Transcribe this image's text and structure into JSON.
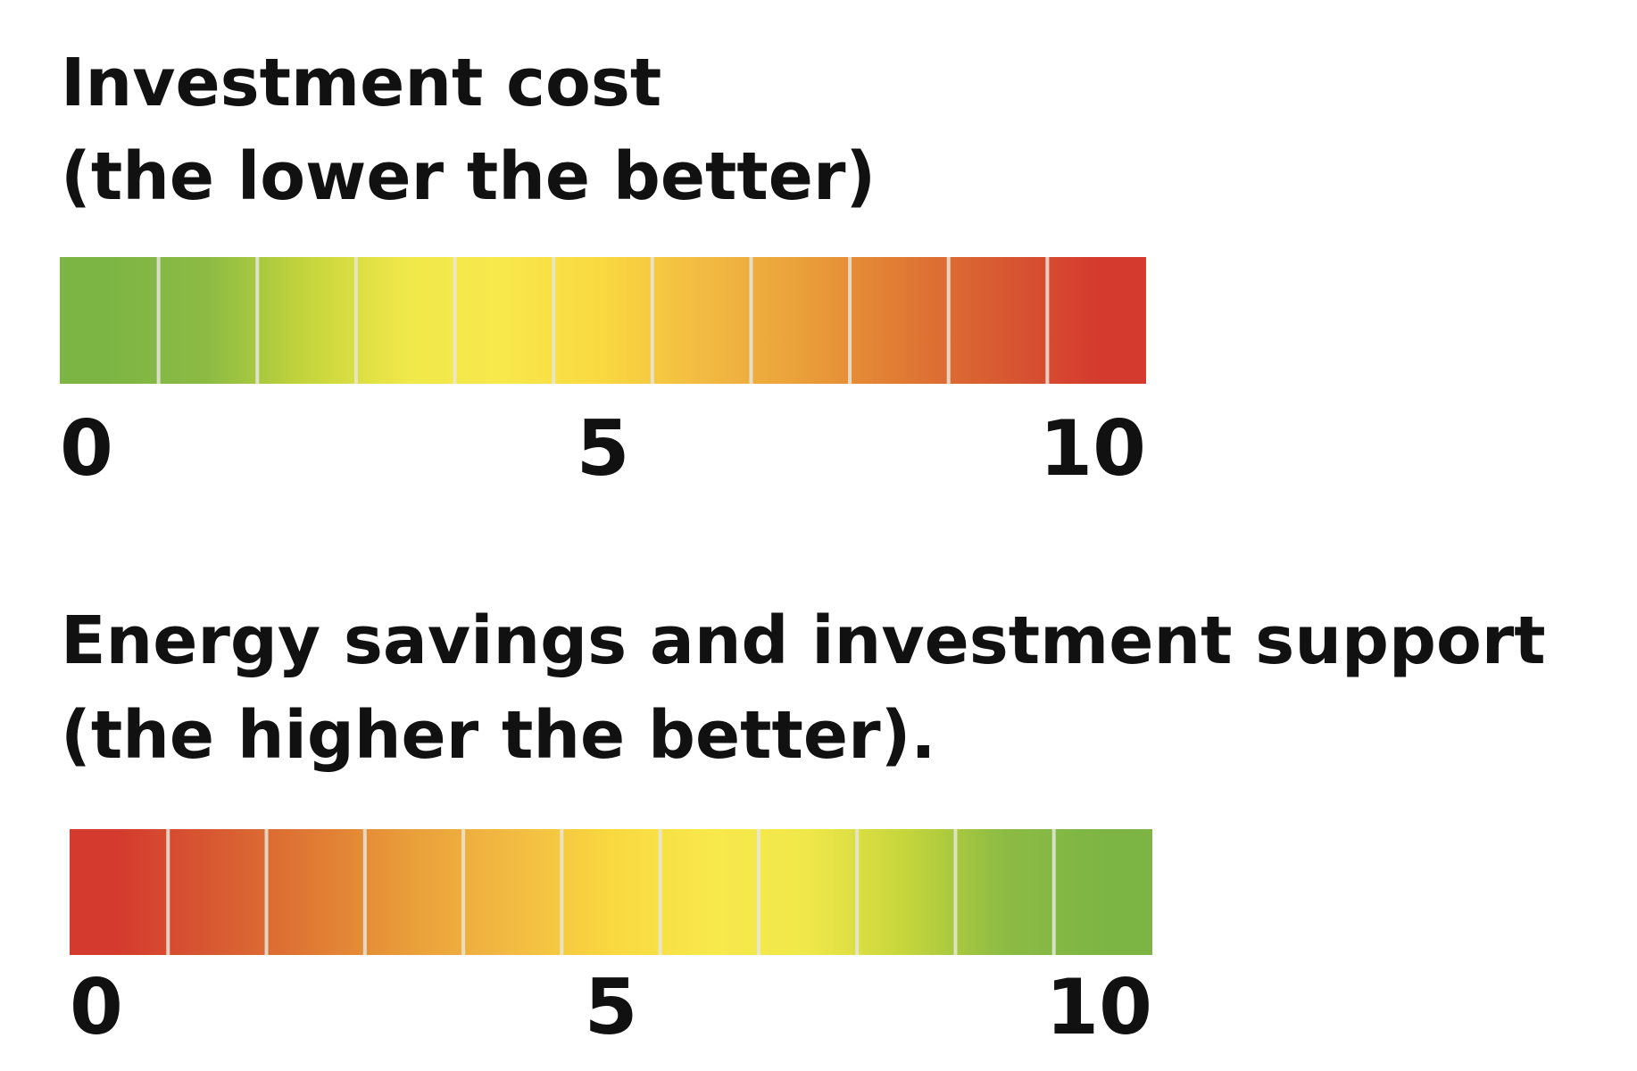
{
  "sections": [
    {
      "title": "Investment cost",
      "subtitle": "(the lower the better)",
      "ticks": [
        0,
        5,
        10
      ],
      "colors": [
        "#7db544",
        "#8cbb44",
        "#c5d53c",
        "#f0e84a",
        "#f8e84c",
        "#f9d840",
        "#f2bb42",
        "#eaa03a",
        "#e07b34",
        "#d85a32",
        "#d43b2e"
      ]
    },
    {
      "title": "Energy savings and investment support",
      "subtitle": "(the higher the better).",
      "ticks": [
        0,
        5,
        10
      ],
      "colors": [
        "#d43b2e",
        "#d85a32",
        "#e07b34",
        "#eaa03a",
        "#f2bb42",
        "#f9d840",
        "#f8e84c",
        "#f0e84a",
        "#c5d53c",
        "#8cbb44",
        "#7db544"
      ]
    }
  ]
}
